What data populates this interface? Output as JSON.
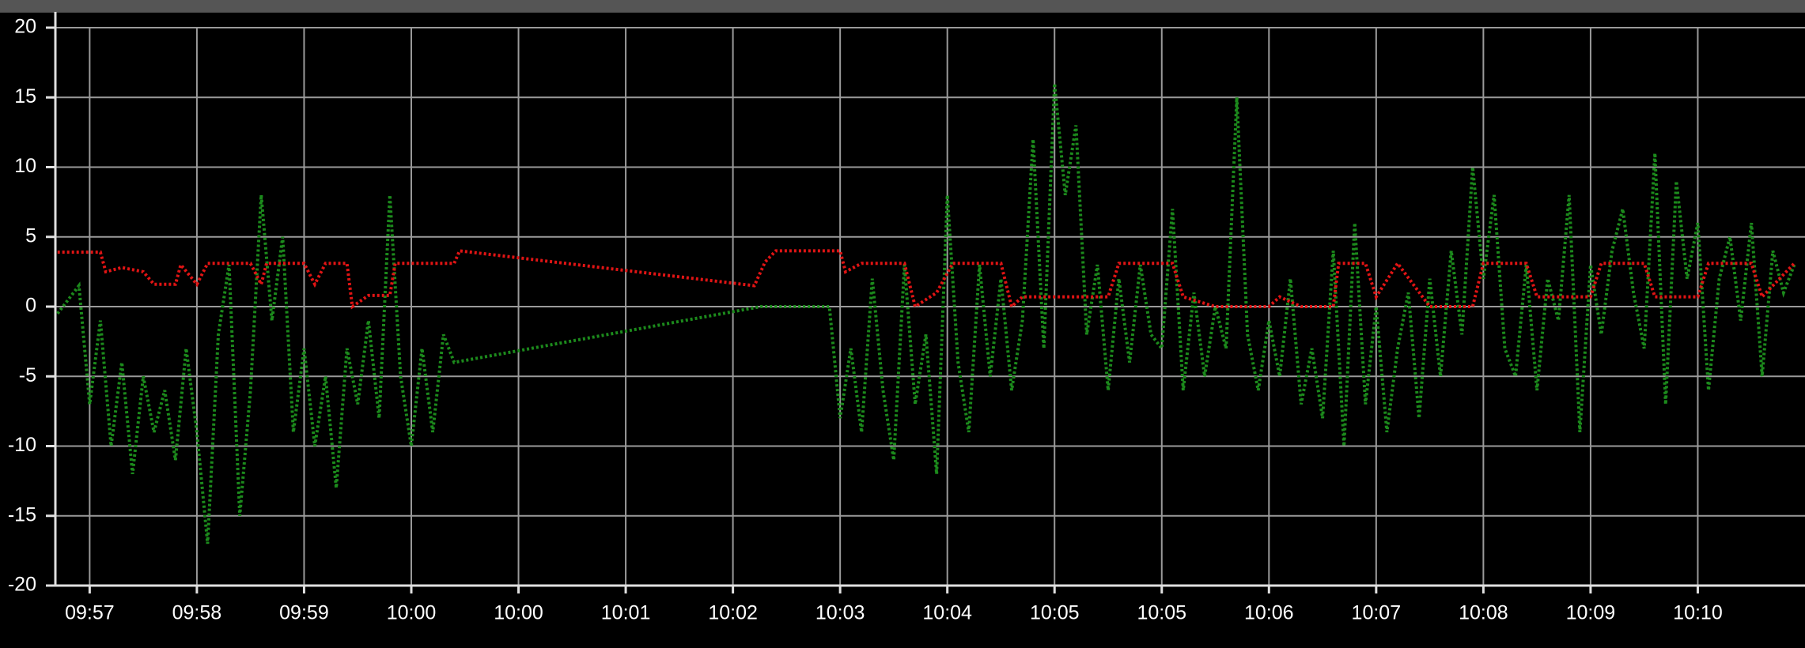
{
  "chart_data": {
    "type": "line",
    "xlim": [
      -0.32,
      16.0
    ],
    "xticks": [
      {
        "value": 0,
        "label": "09:57"
      },
      {
        "value": 1,
        "label": "09:58"
      },
      {
        "value": 2,
        "label": "09:59"
      },
      {
        "value": 3,
        "label": "10:00"
      },
      {
        "value": 4,
        "label": "10:00"
      },
      {
        "value": 5,
        "label": "10:01"
      },
      {
        "value": 6,
        "label": "10:02"
      },
      {
        "value": 7,
        "label": "10:03"
      },
      {
        "value": 8,
        "label": "10:04"
      },
      {
        "value": 9,
        "label": "10:05"
      },
      {
        "value": 10,
        "label": "10:05"
      },
      {
        "value": 11,
        "label": "10:06"
      },
      {
        "value": 12,
        "label": "10:07"
      },
      {
        "value": 13,
        "label": "10:08"
      },
      {
        "value": 14,
        "label": "10:09"
      },
      {
        "value": 15,
        "label": "10:10"
      }
    ],
    "ylim": [
      -20,
      20
    ],
    "yticks": [
      -20,
      -15,
      -10,
      -5,
      0,
      5,
      10,
      15,
      20
    ],
    "grid": true,
    "series": [
      {
        "color": "#1c8a1c",
        "x": [
          -0.3,
          -0.2,
          -0.1,
          0,
          0.1,
          0.2,
          0.3,
          0.4,
          0.5,
          0.6,
          0.7,
          0.8,
          0.9,
          1,
          1.1,
          1.2,
          1.3,
          1.4,
          1.5,
          1.6,
          1.7,
          1.8,
          1.9,
          2,
          2.1,
          2.2,
          2.3,
          2.4,
          2.5,
          2.6,
          2.7,
          2.8,
          2.9,
          3,
          3.1,
          3.2,
          3.3,
          3.4,
          6.26,
          6.9,
          7,
          7.1,
          7.2,
          7.3,
          7.4,
          7.5,
          7.6,
          7.7,
          7.8,
          7.9,
          8,
          8.1,
          8.2,
          8.3,
          8.4,
          8.5,
          8.6,
          8.7,
          8.8,
          8.9,
          9,
          9.1,
          9.2,
          9.3,
          9.4,
          9.5,
          9.6,
          9.7,
          9.8,
          9.9,
          10,
          10.1,
          10.2,
          10.3,
          10.4,
          10.5,
          10.6,
          10.7,
          10.8,
          10.9,
          11,
          11.1,
          11.2,
          11.3,
          11.4,
          11.5,
          11.6,
          11.7,
          11.8,
          11.9,
          12,
          12.1,
          12.2,
          12.3,
          12.4,
          12.5,
          12.6,
          12.7,
          12.8,
          12.9,
          13,
          13.1,
          13.2,
          13.3,
          13.4,
          13.5,
          13.6,
          13.7,
          13.8,
          13.9,
          14,
          14.1,
          14.2,
          14.3,
          14.4,
          14.5,
          14.6,
          14.7,
          14.8,
          14.9,
          15,
          15.1,
          15.2,
          15.3,
          15.4,
          15.5,
          15.6,
          15.7,
          15.8,
          15.9
        ],
        "values": [
          -0.5,
          0.5,
          1.5,
          -7,
          -1,
          -10,
          -4,
          -12,
          -5,
          -9,
          -6,
          -11,
          -3,
          -9,
          -17,
          -2,
          3,
          -15,
          -6,
          8,
          -1,
          5,
          -9,
          -3,
          -10,
          -5,
          -13,
          -3,
          -7,
          -1,
          -8,
          8,
          -5,
          -10,
          -3,
          -9,
          -2,
          -4,
          0,
          0,
          -8,
          -3,
          -9,
          2,
          -6,
          -11,
          3,
          -7,
          -2,
          -12,
          8,
          -4,
          -9,
          3,
          -5,
          2,
          -6,
          -1,
          12,
          -3,
          16,
          8,
          13,
          -2,
          3,
          -6,
          2,
          -4,
          3,
          -2,
          -3,
          7,
          -6,
          1,
          -5,
          0,
          -3,
          15,
          -2,
          -6,
          -1,
          -5,
          2,
          -7,
          -3,
          -8,
          4,
          -10,
          6,
          -7,
          0,
          -9,
          -3,
          1,
          -8,
          2,
          -5,
          4,
          -2,
          10,
          2,
          8,
          -3,
          -5,
          3,
          -6,
          2,
          -1,
          8,
          -9,
          3,
          -2,
          4,
          7,
          1,
          -3,
          11,
          -7,
          9,
          2,
          6,
          -6,
          2,
          5,
          -1,
          6,
          -5,
          4,
          1,
          3
        ]
      },
      {
        "color": "#e01414",
        "x": [
          -0.3,
          0.1,
          0.15,
          0.3,
          0.5,
          0.6,
          0.8,
          0.85,
          1.0,
          1.1,
          1.5,
          1.6,
          1.65,
          2.0,
          2.1,
          2.2,
          2.4,
          2.45,
          2.6,
          2.8,
          2.85,
          3.4,
          3.45,
          6.2,
          6.3,
          6.4,
          7.0,
          7.05,
          7.2,
          7.6,
          7.7,
          7.9,
          8.05,
          8.5,
          8.6,
          8.7,
          9.5,
          9.6,
          10.1,
          10.2,
          10.5,
          11.0,
          11.1,
          11.3,
          11.6,
          11.65,
          11.9,
          12.0,
          12.2,
          12.5,
          12.9,
          13.0,
          13.4,
          13.5,
          14.0,
          14.1,
          14.5,
          14.6,
          15.0,
          15.1,
          15.5,
          15.6,
          15.9
        ],
        "values": [
          3.9,
          3.9,
          2.5,
          2.8,
          2.5,
          1.6,
          1.6,
          3.0,
          1.6,
          3.1,
          3.1,
          1.6,
          3.1,
          3.1,
          1.6,
          3.1,
          3.1,
          0,
          0.8,
          0.8,
          3.1,
          3.1,
          4.0,
          1.5,
          3.2,
          4.0,
          4.0,
          2.5,
          3.1,
          3.1,
          0,
          1,
          3.1,
          3.1,
          0,
          0.7,
          0.7,
          3.1,
          3.1,
          0.7,
          0,
          0,
          0.7,
          0,
          0,
          3.1,
          3.1,
          0.7,
          3.1,
          0,
          0,
          3.1,
          3.1,
          0.7,
          0.7,
          3.1,
          3.1,
          0.7,
          0.7,
          3.1,
          3.1,
          0.7,
          3.1
        ]
      }
    ]
  }
}
